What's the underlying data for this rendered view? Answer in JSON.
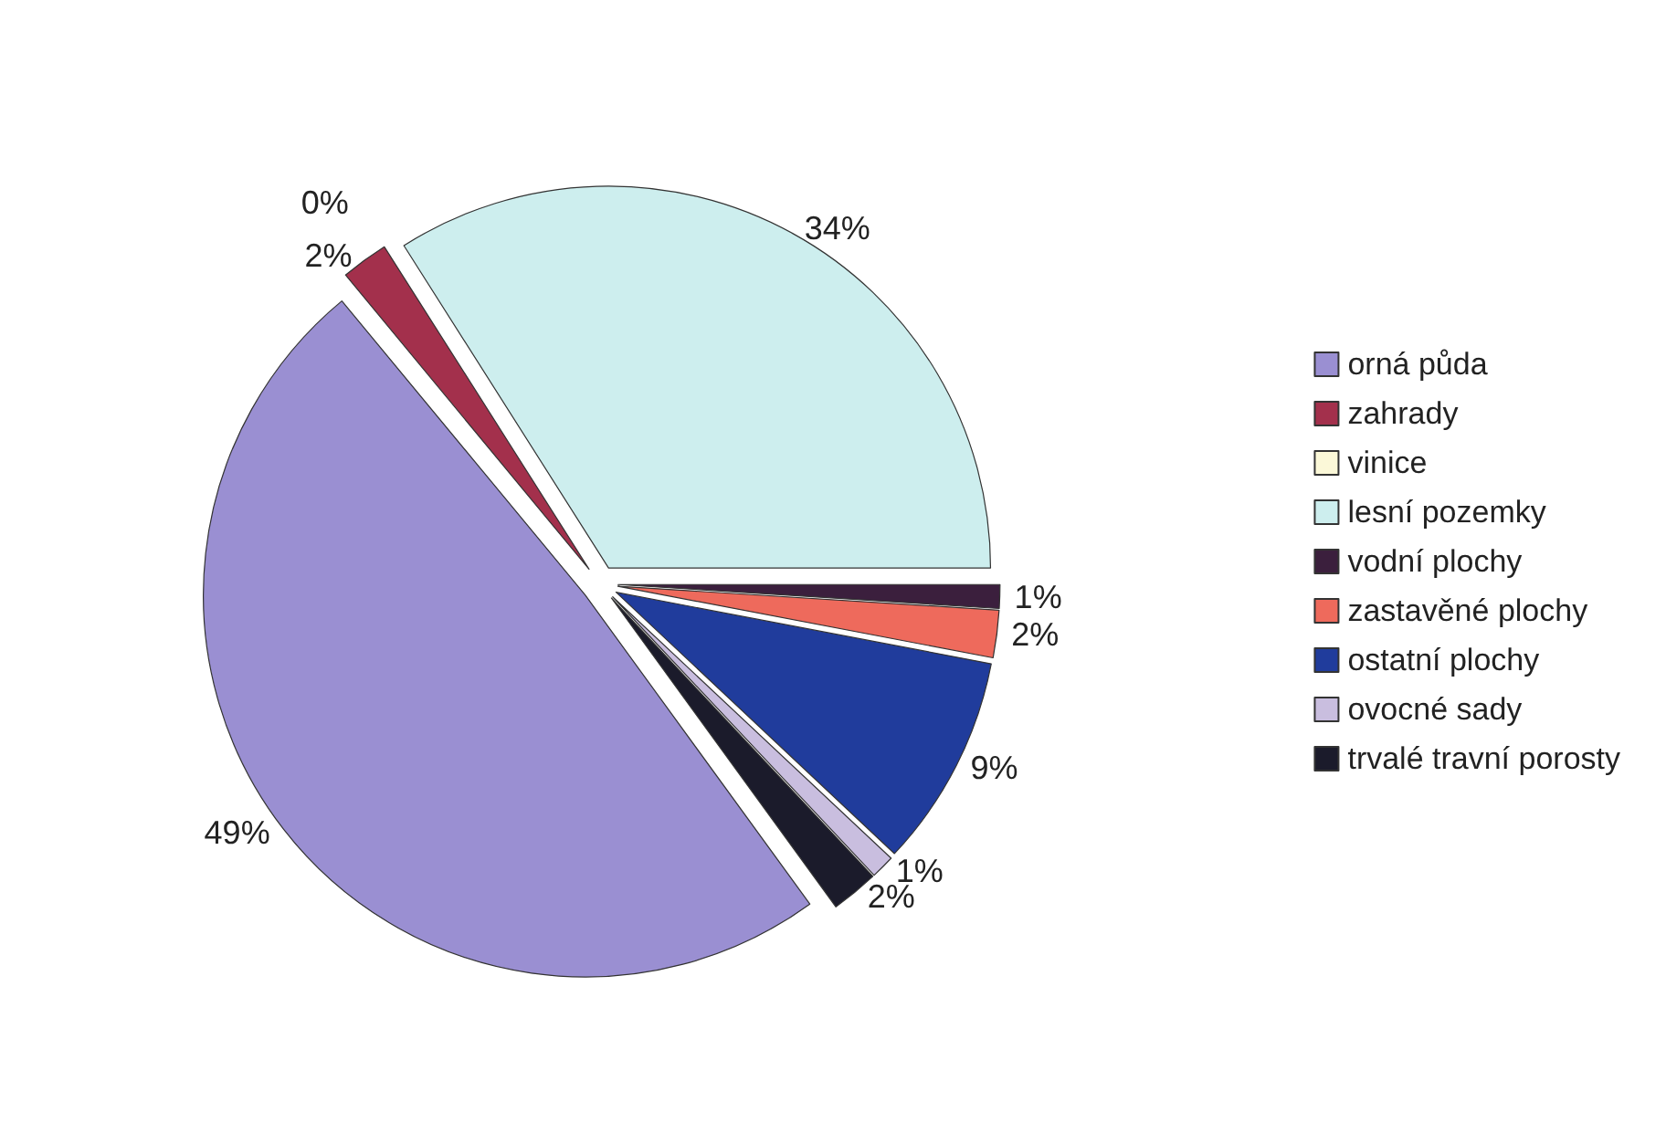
{
  "chart_data": {
    "type": "pie",
    "categories": [
      "orná půda",
      "zahrady",
      "vinice",
      "lesní pozemky",
      "vodní plochy",
      "zastavěné plochy",
      "ostatní plochy",
      "ovocné sady",
      "trvalé travní porosty"
    ],
    "values": [
      49,
      2,
      0,
      34,
      1,
      2,
      9,
      1,
      2
    ],
    "colors": [
      "#9a8fd2",
      "#a3304c",
      "#fbf8d8",
      "#cdeeee",
      "#3b1f3d",
      "#ee6a5c",
      "#203c9c",
      "#c9bedf",
      "#1b1b2b"
    ],
    "value_labels": [
      "49%",
      "2%",
      "0%",
      "34%",
      "1%",
      "2%",
      "9%",
      "1%",
      "2%"
    ],
    "legend": "right"
  }
}
